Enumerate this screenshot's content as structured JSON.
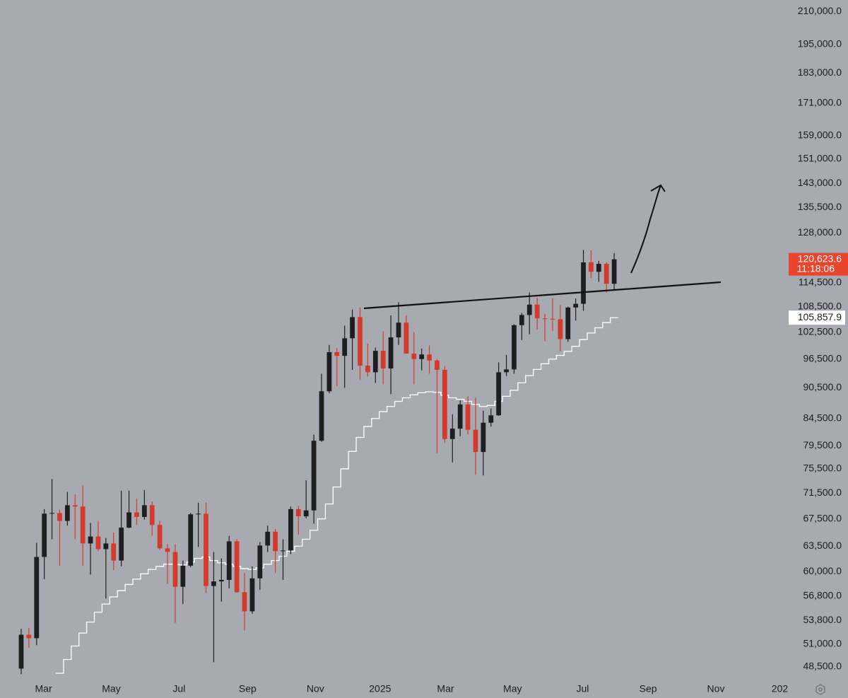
{
  "chart_data": {
    "type": "candlestick",
    "log_scale": true,
    "grid": false,
    "colors": {
      "up": "#1e1e20",
      "down": "#d43a2c",
      "ma": "#ffffff",
      "last_price": "#e8452c",
      "ma_badge": "#ffffff"
    },
    "xlim": [
      -2.75,
      99.1
    ],
    "xticks": [
      {
        "value": 2.9,
        "label": "Mar"
      },
      {
        "value": 11.7,
        "label": "May"
      },
      {
        "value": 20.5,
        "label": "Jul"
      },
      {
        "value": 29.4,
        "label": "Sep"
      },
      {
        "value": 38.2,
        "label": "Nov"
      },
      {
        "value": 46.6,
        "label": "2025"
      },
      {
        "value": 55.1,
        "label": "Mar"
      },
      {
        "value": 63.8,
        "label": "May"
      },
      {
        "value": 72.9,
        "label": "Jul"
      },
      {
        "value": 81.4,
        "label": "Sep"
      },
      {
        "value": 90.2,
        "label": "Nov"
      },
      {
        "value": 98.5,
        "label": "202"
      }
    ],
    "ylim": [
      47200,
      215400
    ],
    "yticks": [
      {
        "value": 210000,
        "label": "210,000.0"
      },
      {
        "value": 195000,
        "label": "195,000.0"
      },
      {
        "value": 183000,
        "label": "183,000.0"
      },
      {
        "value": 171000,
        "label": "171,000.0"
      },
      {
        "value": 159000,
        "label": "159,000.0"
      },
      {
        "value": 151000,
        "label": "151,000.0"
      },
      {
        "value": 143000,
        "label": "143,000.0"
      },
      {
        "value": 135500,
        "label": "135,500.0"
      },
      {
        "value": 128000,
        "label": "128,000.0"
      },
      {
        "value": 114500,
        "label": "114,500.0"
      },
      {
        "value": 108500,
        "label": "108,500.0"
      },
      {
        "value": 102500,
        "label": "102,500.0"
      },
      {
        "value": 96500,
        "label": "96,500.0"
      },
      {
        "value": 90500,
        "label": "90,500.0"
      },
      {
        "value": 84500,
        "label": "84,500.0"
      },
      {
        "value": 79500,
        "label": "79,500.0"
      },
      {
        "value": 75500,
        "label": "75,500.0"
      },
      {
        "value": 71500,
        "label": "71,500.0"
      },
      {
        "value": 67500,
        "label": "67,500.0"
      },
      {
        "value": 63500,
        "label": "63,500.0"
      },
      {
        "value": 60000,
        "label": "60,000.0"
      },
      {
        "value": 56800,
        "label": "56,800.0"
      },
      {
        "value": 53800,
        "label": "53,800.0"
      },
      {
        "value": 51000,
        "label": "51,000.0"
      },
      {
        "value": 48500,
        "label": "48,500.0"
      }
    ],
    "open": [
      48300,
      52100,
      51700,
      62000,
      68300,
      68400,
      67200,
      69600,
      69400,
      63900,
      64900,
      63100,
      63900,
      61500,
      66200,
      68500,
      67800,
      69600,
      66600,
      63200,
      62700,
      58000,
      60800,
      68200,
      68300,
      58100,
      58700,
      58900,
      64200,
      57300,
      54900,
      59100,
      63600,
      65600,
      62800,
      62900,
      69000,
      67900,
      68800,
      80400,
      89800,
      98000,
      97200,
      101100,
      106000,
      95100,
      93700,
      98300,
      94500,
      101300,
      104700,
      97700,
      96500,
      97500,
      96200,
      94200,
      80700,
      82600,
      87200,
      82400,
      78400,
      83700,
      85100,
      93700,
      94300,
      104100,
      106500,
      109000,
      105700,
      105600,
      105500,
      100900,
      108300,
      109200,
      119800,
      117300,
      119400,
      114200
    ],
    "high": [
      52800,
      52900,
      64000,
      69000,
      73800,
      68900,
      71700,
      71300,
      72800,
      66900,
      67200,
      64700,
      65500,
      71900,
      71900,
      70600,
      72000,
      70200,
      67200,
      63800,
      63800,
      61500,
      68400,
      70000,
      70000,
      62700,
      61800,
      65000,
      64500,
      59800,
      60700,
      64100,
      66500,
      66000,
      64500,
      69400,
      69500,
      73600,
      81500,
      93400,
      99600,
      98900,
      104000,
      107800,
      108300,
      99900,
      99000,
      102700,
      106400,
      109600,
      106400,
      102500,
      98800,
      99500,
      96500,
      95000,
      85300,
      88000,
      88800,
      88500,
      86000,
      86400,
      95800,
      97400,
      104300,
      107000,
      112000,
      110700,
      106800,
      110600,
      108900,
      108500,
      110500,
      123200,
      123100,
      120200,
      119800,
      122300
    ],
    "low": [
      47700,
      50600,
      50900,
      59000,
      64500,
      60800,
      66500,
      64500,
      60800,
      59600,
      62800,
      56500,
      60200,
      60700,
      66100,
      66600,
      67400,
      65000,
      63000,
      58400,
      53500,
      55800,
      60600,
      63400,
      57200,
      49000,
      56100,
      57800,
      57200,
      52600,
      54600,
      57600,
      62700,
      59800,
      58900,
      62400,
      65200,
      67600,
      66800,
      80200,
      89400,
      90800,
      90500,
      94200,
      92200,
      92800,
      91500,
      91200,
      89200,
      99600,
      97700,
      91200,
      94100,
      93400,
      78200,
      80000,
      76600,
      81200,
      81600,
      74500,
      74400,
      83000,
      85000,
      92900,
      93400,
      100700,
      102000,
      103100,
      100400,
      102800,
      98200,
      100300,
      105200,
      107500,
      115700,
      114700,
      112000,
      112700
    ],
    "close": [
      52100,
      51700,
      62000,
      68300,
      68400,
      67200,
      69600,
      69400,
      63900,
      64900,
      63100,
      63900,
      61500,
      66200,
      68500,
      67800,
      69600,
      66600,
      63200,
      62700,
      58000,
      60800,
      68200,
      68300,
      58100,
      58700,
      58900,
      64200,
      57300,
      54900,
      59100,
      63600,
      65600,
      62800,
      62900,
      69000,
      67900,
      68800,
      80400,
      89800,
      98000,
      97200,
      101100,
      106000,
      95100,
      93700,
      98300,
      94500,
      101300,
      104700,
      97700,
      96500,
      97500,
      96200,
      94200,
      80700,
      82600,
      87200,
      82400,
      78400,
      83700,
      85100,
      93700,
      94300,
      104100,
      106500,
      109000,
      105700,
      105600,
      105500,
      100900,
      108300,
      109200,
      119800,
      117300,
      119400,
      114200,
      120623.6
    ],
    "ma": [
      null,
      null,
      null,
      null,
      null,
      47800,
      49300,
      50800,
      52300,
      53600,
      54800,
      55800,
      56700,
      57500,
      58300,
      59000,
      59700,
      60300,
      60700,
      61000,
      61000,
      60900,
      61300,
      61800,
      62000,
      61500,
      61200,
      61000,
      60700,
      60400,
      60300,
      60500,
      61000,
      61500,
      62100,
      62800,
      63500,
      64500,
      65800,
      67500,
      69800,
      72500,
      75500,
      78500,
      81000,
      83000,
      84500,
      85800,
      86800,
      87800,
      88500,
      89100,
      89500,
      89700,
      89600,
      89000,
      88500,
      88200,
      87800,
      87200,
      86800,
      87000,
      87800,
      88800,
      90000,
      91500,
      93000,
      94300,
      95500,
      96500,
      97300,
      98200,
      99300,
      100800,
      102300,
      103500,
      104700,
      105857.9
    ],
    "last_price_label": "120,623.6",
    "countdown": "11:18:06",
    "ma_label": "105,857.9"
  }
}
